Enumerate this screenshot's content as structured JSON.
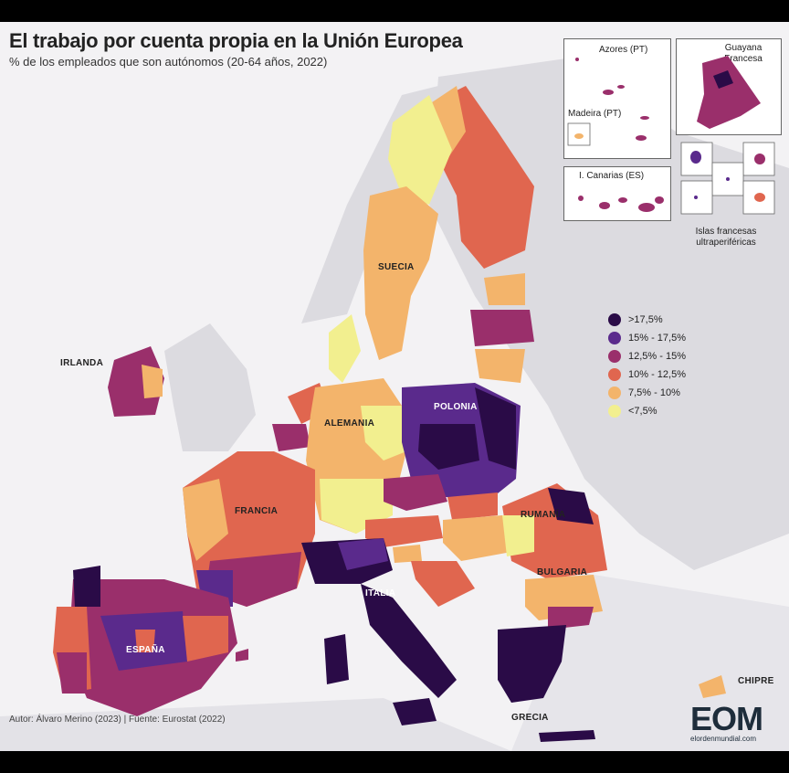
{
  "title": "El trabajo por cuenta propia en la Unión Europea",
  "subtitle": "% de los empleados que son autónomos (20-64 años, 2022)",
  "countries": {
    "irlanda": "IRLANDA",
    "suecia": "SUECIA",
    "alemania": "ALEMANIA",
    "polonia": "POLONIA",
    "francia": "FRANCIA",
    "rumania": "RUMANÍA",
    "bulgaria": "BULGARIA",
    "italia": "ITALIA",
    "espana": "ESPAÑA",
    "chipre": "CHIPRE",
    "grecia": "GRECIA"
  },
  "legend": [
    {
      "label": ">17,5%",
      "color": "#2a0b47"
    },
    {
      "label": "15% - 17,5%",
      "color": "#5a2a8c"
    },
    {
      "label": "12,5% - 15%",
      "color": "#9a2f6b"
    },
    {
      "label": "10% - 12,5%",
      "color": "#e0664f"
    },
    {
      "label": "7,5% - 10%",
      "color": "#f3b46b"
    },
    {
      "label": "<7,5%",
      "color": "#f2ef8f"
    }
  ],
  "insets": {
    "azores": "Azores (PT)",
    "madeira": "Madeira (PT)",
    "canarias": "I. Canarias (ES)",
    "guayana": "Guayana Francesa",
    "islas": "Islas francesas ultraperiféricas"
  },
  "footer": "Autor: Álvaro Merino (2023) | Fuente: Eurostat (2022)",
  "logo": {
    "text": "EOM",
    "sub": "elordenmundial.com"
  },
  "colors": {
    "background": "#f3f2f4",
    "land_non_eu": "#dcdbe0",
    "sea": "#ffffff"
  }
}
